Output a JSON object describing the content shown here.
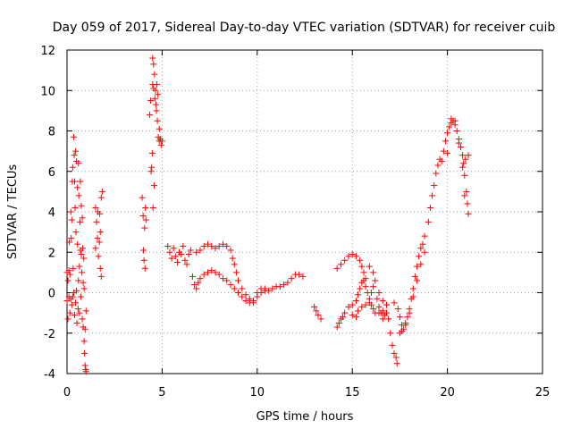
{
  "chart_data": {
    "type": "scatter",
    "title": "Day 059 of 2017, Sidereal Day-to-day VTEC variation (SDTVAR) for receiver cuib",
    "xlabel": "GPS time / hours",
    "ylabel": "SDTVAR / TECUs",
    "xlim": [
      0,
      25
    ],
    "ylim": [
      -4,
      12
    ],
    "xticks": [
      "0",
      "5",
      "10",
      "15",
      "20",
      "25"
    ],
    "yticks": [
      "-4",
      "-2",
      "0",
      "2",
      "4",
      "6",
      "8",
      "10",
      "12"
    ],
    "grid": true,
    "marker": "+",
    "marker_color": "#ff0000",
    "series": [
      {
        "name": "SDTVAR",
        "points": [
          [
            0.0,
            1.0
          ],
          [
            0.0,
            -0.4
          ],
          [
            0.05,
            0.6
          ],
          [
            0.05,
            -1.3
          ],
          [
            0.1,
            1.1
          ],
          [
            0.1,
            -0.2
          ],
          [
            0.12,
            2.5
          ],
          [
            0.15,
            -1.0
          ],
          [
            0.15,
            0.9
          ],
          [
            0.2,
            4.0
          ],
          [
            0.2,
            -0.3
          ],
          [
            0.22,
            2.7
          ],
          [
            0.25,
            -0.6
          ],
          [
            0.25,
            3.6
          ],
          [
            0.28,
            5.5
          ],
          [
            0.3,
            -0.2
          ],
          [
            0.3,
            6.2
          ],
          [
            0.32,
            1.2
          ],
          [
            0.35,
            7.7
          ],
          [
            0.35,
            0.0
          ],
          [
            0.38,
            6.8
          ],
          [
            0.4,
            -1.1
          ],
          [
            0.4,
            5.5
          ],
          [
            0.42,
            4.2
          ],
          [
            0.45,
            -0.5
          ],
          [
            0.45,
            7.0
          ],
          [
            0.47,
            3.0
          ],
          [
            0.5,
            0.1
          ],
          [
            0.5,
            6.5
          ],
          [
            0.52,
            -1.5
          ],
          [
            0.55,
            2.4
          ],
          [
            0.55,
            5.2
          ],
          [
            0.58,
            -0.8
          ],
          [
            0.6,
            6.4
          ],
          [
            0.6,
            0.6
          ],
          [
            0.62,
            4.8
          ],
          [
            0.65,
            1.3
          ],
          [
            0.65,
            -1.0
          ],
          [
            0.68,
            3.5
          ],
          [
            0.7,
            5.5
          ],
          [
            0.7,
            2.1
          ],
          [
            0.72,
            -0.2
          ],
          [
            0.75,
            4.3
          ],
          [
            0.75,
            1.9
          ],
          [
            0.78,
            1.0
          ],
          [
            0.8,
            3.7
          ],
          [
            0.8,
            -1.3
          ],
          [
            0.82,
            2.2
          ],
          [
            0.85,
            0.5
          ],
          [
            0.85,
            -1.7
          ],
          [
            0.88,
            1.7
          ],
          [
            0.9,
            -2.4
          ],
          [
            0.9,
            0.2
          ],
          [
            0.92,
            -3.0
          ],
          [
            0.95,
            -3.6
          ],
          [
            0.95,
            -1.8
          ],
          [
            0.98,
            -3.8
          ],
          [
            1.0,
            -3.9
          ],
          [
            1.0,
            -0.9
          ],
          [
            1.5,
            2.2
          ],
          [
            1.5,
            4.2
          ],
          [
            1.55,
            3.5
          ],
          [
            1.6,
            2.7
          ],
          [
            1.62,
            4.0
          ],
          [
            1.65,
            1.8
          ],
          [
            1.7,
            2.5
          ],
          [
            1.72,
            3.9
          ],
          [
            1.75,
            1.2
          ],
          [
            1.75,
            3.0
          ],
          [
            1.8,
            0.8
          ],
          [
            1.8,
            4.7
          ],
          [
            1.85,
            5.0
          ],
          [
            3.95,
            4.7
          ],
          [
            4.0,
            3.8
          ],
          [
            4.02,
            2.1
          ],
          [
            4.05,
            1.6
          ],
          [
            4.08,
            3.2
          ],
          [
            4.1,
            1.2
          ],
          [
            4.12,
            4.2
          ],
          [
            4.15,
            3.6
          ],
          [
            4.35,
            8.8
          ],
          [
            4.4,
            9.5
          ],
          [
            4.42,
            6.0
          ],
          [
            4.45,
            6.2
          ],
          [
            4.48,
            6.9
          ],
          [
            4.5,
            11.6
          ],
          [
            4.5,
            10.3
          ],
          [
            4.52,
            4.2
          ],
          [
            4.55,
            11.3
          ],
          [
            4.55,
            10.1
          ],
          [
            4.58,
            5.3
          ],
          [
            4.6,
            10.8
          ],
          [
            4.62,
            9.6
          ],
          [
            4.65,
            10.0
          ],
          [
            4.68,
            9.3
          ],
          [
            4.7,
            9.0
          ],
          [
            4.72,
            10.3
          ],
          [
            4.75,
            8.5
          ],
          [
            4.78,
            9.8
          ],
          [
            4.8,
            7.7
          ],
          [
            4.85,
            8.1
          ],
          [
            4.85,
            7.5
          ],
          [
            4.9,
            7.6
          ],
          [
            4.95,
            7.3
          ],
          [
            5.0,
            7.5
          ],
          [
            5.3,
            2.3
          ],
          [
            5.4,
            2.0
          ],
          [
            5.5,
            1.7
          ],
          [
            5.6,
            2.2
          ],
          [
            5.7,
            1.8
          ],
          [
            5.8,
            1.5
          ],
          [
            5.9,
            2.0
          ],
          [
            6.0,
            1.9
          ],
          [
            6.1,
            2.3
          ],
          [
            6.2,
            1.6
          ],
          [
            6.3,
            1.4
          ],
          [
            6.4,
            1.9
          ],
          [
            6.5,
            2.1
          ],
          [
            6.6,
            0.8
          ],
          [
            6.7,
            0.4
          ],
          [
            6.8,
            0.2
          ],
          [
            6.9,
            0.5
          ],
          [
            7.0,
            0.7
          ],
          [
            7.2,
            0.9
          ],
          [
            7.4,
            1.0
          ],
          [
            7.6,
            1.1
          ],
          [
            7.8,
            1.0
          ],
          [
            8.0,
            0.9
          ],
          [
            8.2,
            0.7
          ],
          [
            8.4,
            0.6
          ],
          [
            8.6,
            0.4
          ],
          [
            8.8,
            0.2
          ],
          [
            9.0,
            0.0
          ],
          [
            9.2,
            -0.2
          ],
          [
            9.4,
            -0.4
          ],
          [
            9.6,
            -0.5
          ],
          [
            9.8,
            -0.4
          ],
          [
            10.0,
            -0.2
          ],
          [
            10.2,
            0.0
          ],
          [
            10.4,
            0.2
          ],
          [
            6.8,
            2.0
          ],
          [
            7.0,
            2.1
          ],
          [
            7.2,
            2.3
          ],
          [
            7.4,
            2.4
          ],
          [
            7.6,
            2.3
          ],
          [
            7.8,
            2.2
          ],
          [
            8.0,
            2.3
          ],
          [
            8.2,
            2.4
          ],
          [
            8.4,
            2.3
          ],
          [
            8.6,
            2.1
          ],
          [
            8.7,
            1.7
          ],
          [
            8.8,
            1.4
          ],
          [
            8.9,
            1.0
          ],
          [
            9.0,
            0.6
          ],
          [
            9.2,
            0.2
          ],
          [
            9.4,
            -0.1
          ],
          [
            9.6,
            -0.3
          ],
          [
            9.8,
            -0.5
          ],
          [
            10.0,
            0.0
          ],
          [
            10.2,
            0.2
          ],
          [
            10.4,
            0.1
          ],
          [
            10.6,
            0.1
          ],
          [
            10.8,
            0.2
          ],
          [
            11.0,
            0.3
          ],
          [
            11.2,
            0.3
          ],
          [
            11.4,
            0.4
          ],
          [
            11.6,
            0.5
          ],
          [
            11.8,
            0.7
          ],
          [
            12.0,
            0.9
          ],
          [
            12.2,
            0.9
          ],
          [
            12.4,
            0.8
          ],
          [
            13.0,
            -0.7
          ],
          [
            13.1,
            -0.9
          ],
          [
            13.2,
            -1.1
          ],
          [
            13.35,
            -1.3
          ],
          [
            14.2,
            -1.7
          ],
          [
            14.3,
            -1.5
          ],
          [
            14.4,
            -1.3
          ],
          [
            14.5,
            -1.2
          ],
          [
            14.6,
            -1.0
          ],
          [
            14.8,
            -0.7
          ],
          [
            15.0,
            -0.6
          ],
          [
            15.2,
            -0.4
          ],
          [
            15.3,
            -0.1
          ],
          [
            15.4,
            0.2
          ],
          [
            15.5,
            0.5
          ],
          [
            15.6,
            0.6
          ],
          [
            15.7,
            0.3
          ],
          [
            15.8,
            0.0
          ],
          [
            15.9,
            -0.3
          ],
          [
            16.0,
            -0.6
          ],
          [
            16.1,
            -0.8
          ],
          [
            16.2,
            -1.0
          ],
          [
            16.4,
            -1.0
          ],
          [
            16.6,
            -0.9
          ],
          [
            16.8,
            -1.0
          ],
          [
            14.2,
            1.2
          ],
          [
            14.4,
            1.4
          ],
          [
            14.6,
            1.6
          ],
          [
            14.8,
            1.8
          ],
          [
            15.0,
            1.9
          ],
          [
            15.2,
            1.8
          ],
          [
            15.4,
            1.6
          ],
          [
            15.5,
            1.3
          ],
          [
            15.6,
            1.0
          ],
          [
            15.7,
            0.7
          ],
          [
            15.9,
            1.3
          ],
          [
            16.1,
            1.0
          ],
          [
            16.2,
            0.6
          ],
          [
            16.4,
            0.0
          ],
          [
            16.6,
            -0.4
          ],
          [
            16.8,
            -0.6
          ],
          [
            15.0,
            -1.1
          ],
          [
            15.2,
            -1.2
          ],
          [
            15.3,
            -0.9
          ],
          [
            15.5,
            -0.7
          ],
          [
            15.7,
            -0.6
          ],
          [
            15.9,
            -0.5
          ],
          [
            16.0,
            0.0
          ],
          [
            16.1,
            0.3
          ],
          [
            16.3,
            -0.3
          ],
          [
            16.4,
            -0.7
          ],
          [
            16.5,
            -1.0
          ],
          [
            16.6,
            -1.3
          ],
          [
            16.7,
            -1.1
          ],
          [
            16.8,
            -0.6
          ],
          [
            16.9,
            -1.3
          ],
          [
            17.0,
            -2.0
          ],
          [
            17.1,
            -2.6
          ],
          [
            17.2,
            -3.0
          ],
          [
            17.3,
            -3.2
          ],
          [
            17.35,
            -3.5
          ],
          [
            17.2,
            -0.5
          ],
          [
            17.4,
            -0.8
          ],
          [
            17.5,
            -1.2
          ],
          [
            17.6,
            -1.6
          ],
          [
            17.7,
            -1.8
          ],
          [
            17.8,
            -1.5
          ],
          [
            17.9,
            -1.2
          ],
          [
            18.0,
            -0.8
          ],
          [
            18.1,
            -0.3
          ],
          [
            18.2,
            0.2
          ],
          [
            18.3,
            0.8
          ],
          [
            18.4,
            1.3
          ],
          [
            18.5,
            1.8
          ],
          [
            18.6,
            2.2
          ],
          [
            18.7,
            2.4
          ],
          [
            18.8,
            2.8
          ],
          [
            17.5,
            -2.0
          ],
          [
            17.6,
            -1.9
          ],
          [
            17.8,
            -1.6
          ],
          [
            18.0,
            -1.0
          ],
          [
            18.2,
            -0.2
          ],
          [
            18.4,
            0.6
          ],
          [
            18.6,
            1.4
          ],
          [
            18.8,
            2.0
          ],
          [
            19.0,
            3.5
          ],
          [
            19.1,
            4.2
          ],
          [
            19.2,
            4.8
          ],
          [
            19.3,
            5.3
          ],
          [
            19.4,
            5.9
          ],
          [
            19.5,
            6.3
          ],
          [
            19.6,
            6.6
          ],
          [
            19.7,
            6.5
          ],
          [
            19.8,
            7.0
          ],
          [
            19.9,
            7.5
          ],
          [
            20.0,
            7.9
          ],
          [
            20.1,
            8.2
          ],
          [
            20.2,
            8.4
          ],
          [
            20.3,
            8.5
          ],
          [
            20.4,
            8.3
          ],
          [
            20.5,
            8.0
          ],
          [
            20.6,
            7.6
          ],
          [
            20.7,
            7.2
          ],
          [
            20.8,
            6.8
          ],
          [
            20.85,
            6.4
          ],
          [
            20.9,
            5.8
          ],
          [
            20.95,
            6.6
          ],
          [
            21.0,
            5.0
          ],
          [
            21.05,
            4.4
          ],
          [
            21.1,
            3.9
          ],
          [
            21.1,
            6.8
          ],
          [
            20.0,
            6.9
          ],
          [
            20.2,
            8.6
          ],
          [
            20.4,
            8.5
          ],
          [
            20.6,
            7.4
          ],
          [
            20.8,
            6.2
          ],
          [
            20.9,
            4.8
          ]
        ]
      }
    ]
  }
}
